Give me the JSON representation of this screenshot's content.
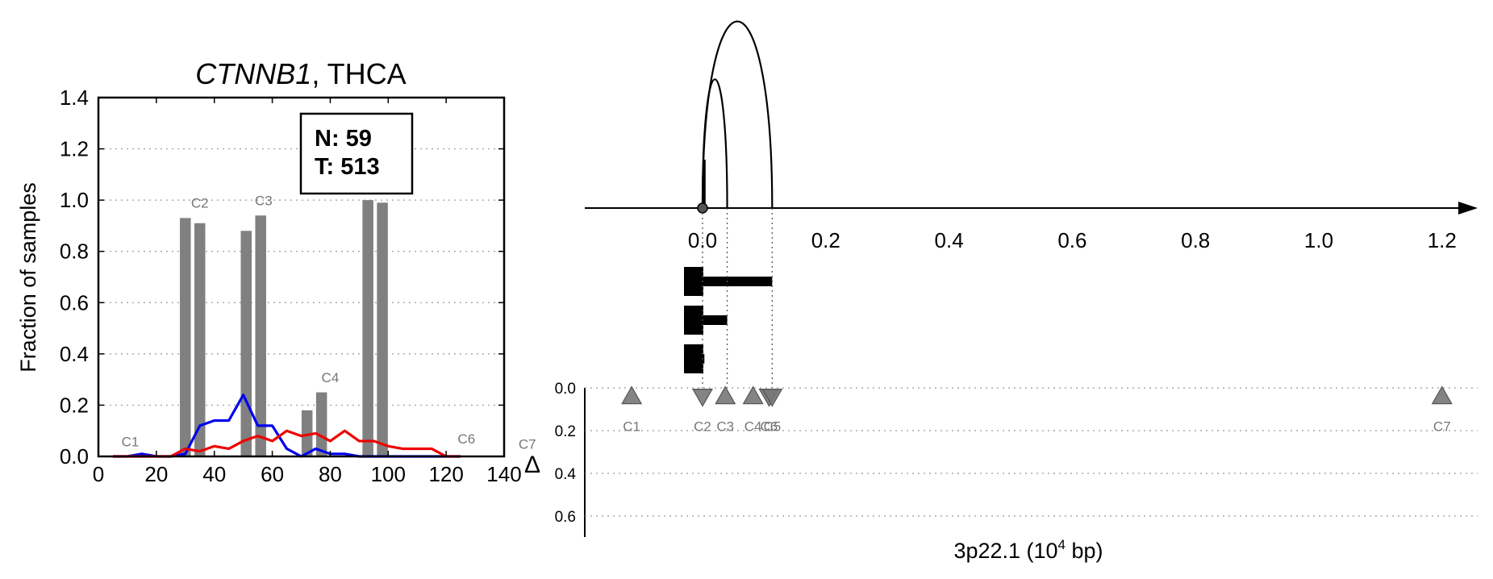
{
  "left_chart": {
    "title_gene": "CTNNB1",
    "title_rest": ", THCA",
    "ylabel": "Fraction of samples",
    "xticks": [
      "0",
      "20",
      "40",
      "60",
      "80",
      "100",
      "120",
      "140"
    ],
    "yticks": [
      "0.0",
      "0.2",
      "0.4",
      "0.6",
      "0.8",
      "1.0",
      "1.2",
      "1.4"
    ],
    "box": {
      "line1": "N: 59",
      "line2": "T: 513"
    }
  },
  "right_chart": {
    "xticks": [
      "0.0",
      "0.2",
      "0.4",
      "0.6",
      "0.8",
      "1.0",
      "1.2"
    ],
    "delta_ticks": [
      "0.0",
      "0.2",
      "0.4",
      "0.6"
    ],
    "delta_label": "Δ",
    "xlabel_main": "3p22.1 (10",
    "xlabel_sup": "4",
    "xlabel_tail": " bp)"
  },
  "chart_data": [
    {
      "type": "bar",
      "title": "CTNNB1, THCA",
      "ylabel": "Fraction of samples",
      "xlim": [
        0,
        140
      ],
      "ylim": [
        0,
        1.4
      ],
      "grid": "y-dotted",
      "bars": [
        {
          "x": 30,
          "value": 0.93
        },
        {
          "x": 35,
          "value": 0.91
        },
        {
          "x": 51,
          "value": 0.88
        },
        {
          "x": 56,
          "value": 0.94
        },
        {
          "x": 72,
          "value": 0.18
        },
        {
          "x": 77,
          "value": 0.25
        },
        {
          "x": 93,
          "value": 1.0
        },
        {
          "x": 98,
          "value": 0.99
        }
      ],
      "series": [
        {
          "color": "#0000ee",
          "x": [
            5,
            10,
            15,
            20,
            25,
            30,
            35,
            40,
            45,
            50,
            55,
            60,
            65,
            70,
            75,
            80,
            85,
            90,
            95,
            100,
            105,
            110,
            115,
            120,
            125
          ],
          "y": [
            0,
            0,
            0.01,
            0,
            0,
            0.01,
            0.12,
            0.14,
            0.14,
            0.24,
            0.12,
            0.12,
            0.03,
            0,
            0.03,
            0.01,
            0.01,
            0,
            0,
            0,
            0,
            0,
            0,
            0,
            0
          ]
        },
        {
          "color": "#ee0000",
          "x": [
            5,
            10,
            15,
            20,
            25,
            30,
            35,
            40,
            45,
            50,
            55,
            60,
            65,
            70,
            75,
            80,
            85,
            90,
            95,
            100,
            105,
            110,
            115,
            120,
            125
          ],
          "y": [
            0,
            0,
            0,
            0,
            0,
            0.03,
            0.02,
            0.04,
            0.03,
            0.06,
            0.08,
            0.06,
            0.1,
            0.08,
            0.09,
            0.06,
            0.1,
            0.06,
            0.06,
            0.04,
            0.03,
            0.03,
            0.03,
            0,
            0
          ]
        }
      ],
      "annotations": [
        {
          "text": "C1",
          "x": 11,
          "y": 0.04
        },
        {
          "text": "C2",
          "x": 35,
          "y": 0.97
        },
        {
          "text": "C3",
          "x": 57,
          "y": 0.98
        },
        {
          "text": "C4",
          "x": 80,
          "y": 0.29
        },
        {
          "text": "C6",
          "x": 127,
          "y": 0.05
        },
        {
          "text": "C7",
          "x": 148,
          "y": 0.03
        }
      ],
      "legend_box": {
        "text": [
          "N: 59",
          "T: 513"
        ],
        "placement": "top-right"
      }
    },
    {
      "type": "scatter",
      "xlabel": "3p22.1 (10^4 bp)",
      "xlim": [
        -0.19,
        1.3
      ],
      "xticks": [
        0.0,
        0.2,
        0.4,
        0.6,
        0.8,
        1.0,
        1.2
      ],
      "ylabel": "Δ",
      "ylim": [
        0.7,
        0.0
      ],
      "grid": "y-dotted",
      "points": [
        {
          "label": "C1",
          "x": -0.115,
          "y": 0.04,
          "marker": "up"
        },
        {
          "label": "C2",
          "x": 0.0,
          "y": 0.04,
          "marker": "down"
        },
        {
          "label": "C3",
          "x": 0.037,
          "y": 0.04,
          "marker": "up"
        },
        {
          "label": "C4",
          "x": 0.082,
          "y": 0.04,
          "marker": "up"
        },
        {
          "label": "C5",
          "x": 0.108,
          "y": 0.04,
          "marker": "down"
        },
        {
          "label": "C6",
          "x": 0.113,
          "y": 0.04,
          "marker": "down"
        },
        {
          "label": "C7",
          "x": 1.2,
          "y": 0.04,
          "marker": "up"
        }
      ],
      "arcs": [
        {
          "from": 0.0,
          "to": 0.04,
          "height": 0.69
        },
        {
          "from": 0.0,
          "to": 0.113,
          "height": 1.0
        }
      ],
      "segments": [
        {
          "from": 0.0,
          "to": 0.113
        },
        {
          "from": 0.0,
          "to": 0.04
        },
        {
          "from": 0.0,
          "to": 0.003
        }
      ]
    }
  ]
}
